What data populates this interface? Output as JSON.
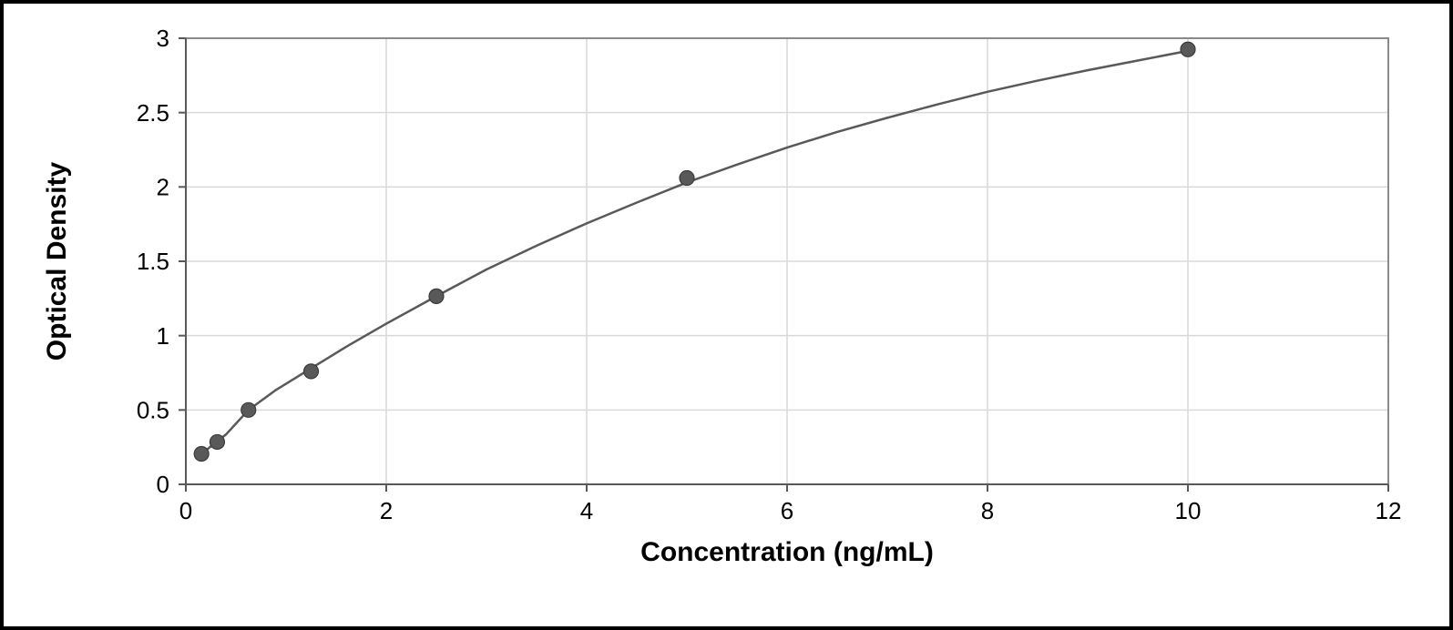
{
  "chart": {
    "type": "scatter-line",
    "xlabel": "Concentration (ng/mL)",
    "ylabel": "Optical Density",
    "label_fontsize": 30,
    "label_fontweight": 700,
    "tick_fontsize": 26,
    "xlim": [
      0,
      12
    ],
    "ylim": [
      0,
      3
    ],
    "xticks": [
      0,
      2,
      4,
      6,
      8,
      10,
      12
    ],
    "yticks": [
      0,
      0.5,
      1,
      1.5,
      2,
      2.5,
      3
    ],
    "background_color": "#ffffff",
    "plot_border_color": "#8a8a8a",
    "plot_border_width": 2,
    "grid_color": "#d9d9d9",
    "grid_width": 1.5,
    "axis_line_color": "#595959",
    "axis_line_width": 2,
    "tick_color": "#595959",
    "tick_length": 8,
    "series": {
      "marker_color": "#595959",
      "marker_stroke": "#3b3b3b",
      "marker_radius": 8,
      "line_color": "#595959",
      "line_width": 2.5,
      "points": [
        {
          "x": 0.156,
          "y": 0.205
        },
        {
          "x": 0.313,
          "y": 0.285
        },
        {
          "x": 0.625,
          "y": 0.5
        },
        {
          "x": 1.25,
          "y": 0.76
        },
        {
          "x": 2.5,
          "y": 1.265
        },
        {
          "x": 5.0,
          "y": 2.06
        },
        {
          "x": 10.0,
          "y": 2.925
        }
      ],
      "curve": [
        {
          "x": 0.156,
          "y": 0.205
        },
        {
          "x": 0.25,
          "y": 0.255
        },
        {
          "x": 0.4,
          "y": 0.335
        },
        {
          "x": 0.625,
          "y": 0.5
        },
        {
          "x": 0.9,
          "y": 0.635
        },
        {
          "x": 1.25,
          "y": 0.78
        },
        {
          "x": 1.6,
          "y": 0.925
        },
        {
          "x": 2.0,
          "y": 1.08
        },
        {
          "x": 2.5,
          "y": 1.265
        },
        {
          "x": 3.0,
          "y": 1.445
        },
        {
          "x": 3.5,
          "y": 1.605
        },
        {
          "x": 4.0,
          "y": 1.755
        },
        {
          "x": 4.5,
          "y": 1.895
        },
        {
          "x": 5.0,
          "y": 2.03
        },
        {
          "x": 5.5,
          "y": 2.15
        },
        {
          "x": 6.0,
          "y": 2.265
        },
        {
          "x": 6.5,
          "y": 2.37
        },
        {
          "x": 7.0,
          "y": 2.465
        },
        {
          "x": 7.5,
          "y": 2.555
        },
        {
          "x": 8.0,
          "y": 2.64
        },
        {
          "x": 8.5,
          "y": 2.715
        },
        {
          "x": 9.0,
          "y": 2.785
        },
        {
          "x": 9.5,
          "y": 2.85
        },
        {
          "x": 10.0,
          "y": 2.915
        }
      ]
    }
  }
}
